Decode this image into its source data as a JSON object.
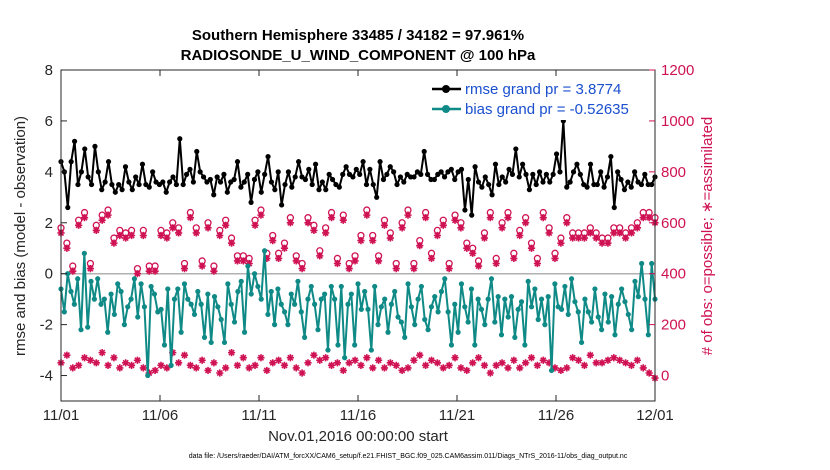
{
  "chart_data": {
    "type": "line",
    "title": "Southern Hemisphere 33485 / 34182 = 97.961%",
    "subtitle": "RADIOSONDE_U_WIND_COMPONENT @ 100 hPa",
    "xlabel": "Nov.01,2016 00:00:00 start",
    "ylabel_left": "rmse and bias (model - observation)",
    "ylabel_right": "# of obs: o=possible; ∗=assimilated",
    "footnote": "data file: /Users/raeder/DAI/ATM_forcXX/CAM6_setup/f.e21.FHIST_BGC.f09_025.CAM6assim.011/Diags_NTrS_2016-11/obs_diag_output.nc",
    "xlim": [
      0,
      30
    ],
    "ylim_left": [
      -5,
      8
    ],
    "ylim_right": [
      -100,
      1200
    ],
    "x_ticks": [
      0,
      5,
      10,
      15,
      20,
      25,
      30
    ],
    "x_tick_labels": [
      "11/01",
      "11/06",
      "11/11",
      "11/16",
      "11/21",
      "11/26",
      "12/01"
    ],
    "y_ticks_left": [
      -4,
      -2,
      0,
      2,
      4,
      6,
      8
    ],
    "y_ticks_right": [
      0,
      200,
      400,
      600,
      800,
      1000,
      1200
    ],
    "zero_line": 0,
    "legend": [
      {
        "label": "rmse grand pr = 3.8774",
        "color": "#000000"
      },
      {
        "label": "bias grand pr = -0.52635",
        "color": "#0f8a86"
      }
    ],
    "colors": {
      "rmse": "#000000",
      "bias": "#0f8a86",
      "obs": "#cf1253",
      "right_axis": "#cf1253",
      "zero_line": "#b0b0b0"
    },
    "series": [
      {
        "name": "rmse",
        "values": [
          4.4,
          4.0,
          2.6,
          4.4,
          5.2,
          3.5,
          4.0,
          4.9,
          3.8,
          3.5,
          5.0,
          4.0,
          3.3,
          3.6,
          4.4,
          3.5,
          3.2,
          3.5,
          3.3,
          4.2,
          3.6,
          3.3,
          3.8,
          3.5,
          4.3,
          3.5,
          3.4,
          4.0,
          3.6,
          3.5,
          3.6,
          3.2,
          3.6,
          3.8,
          3.5,
          5.3,
          3.5,
          3.9,
          4.1,
          3.6,
          4.8,
          4.0,
          3.8,
          3.6,
          3.7,
          3.1,
          3.8,
          3.6,
          3.9,
          3.2,
          3.6,
          3.7,
          4.4,
          3.4,
          3.6,
          3.9,
          2.8,
          3.7,
          4.0,
          3.2,
          3.9,
          4.6,
          3.6,
          3.3,
          4.0,
          2.7,
          3.5,
          4.0,
          3.4,
          3.8,
          4.4,
          3.8,
          3.7,
          4.1,
          3.5,
          4.3,
          3.3,
          3.6,
          3.3,
          3.9,
          3.7,
          3.5,
          3.4,
          3.9,
          4.2,
          3.9,
          3.8,
          4.1,
          3.9,
          4.4,
          3.5,
          4.1,
          3.5,
          3.0,
          4.4,
          3.7,
          3.9,
          4.2,
          4.0,
          3.5,
          3.8,
          3.6,
          3.9,
          3.8,
          3.8,
          4.0,
          3.9,
          4.8,
          3.9,
          3.7,
          3.7,
          3.9,
          4.0,
          3.8,
          4.0,
          4.1,
          3.7,
          4.0,
          4.1,
          2.5,
          3.7,
          2.3,
          4.2,
          3.6,
          3.4,
          3.8,
          3.5,
          3.1,
          4.3,
          3.5,
          3.8,
          3.6,
          4.1,
          3.9,
          4.9,
          3.8,
          4.3,
          3.9,
          3.3,
          3.9,
          3.5,
          4.0,
          3.6,
          3.9,
          3.6,
          3.9,
          4.7,
          4.0,
          6.0,
          3.4,
          3.6,
          4.0,
          4.3,
          3.9,
          3.5,
          3.4,
          4.3,
          3.5,
          3.5,
          4.0,
          3.4,
          3.8,
          4.6,
          2.6,
          4.0,
          3.7,
          3.3,
          3.6,
          3.4,
          4.0,
          3.6,
          3.5,
          3.9,
          3.5,
          3.5,
          3.8
        ]
      },
      {
        "name": "bias",
        "values": [
          -0.6,
          -1.5,
          0.0,
          -0.7,
          -1.2,
          -0.2,
          -2.2,
          0.8,
          -2.1,
          -0.3,
          -1.0,
          -0.2,
          -1.2,
          -1.0,
          -2.3,
          -0.8,
          -1.6,
          -0.4,
          -0.7,
          -2.0,
          -1.3,
          -1.0,
          -0.2,
          -1.7,
          -0.4,
          -1.3,
          -4.0,
          -0.5,
          -0.8,
          -1.5,
          -1.4,
          -2.8,
          -0.6,
          -3.6,
          -1.0,
          -0.6,
          -2.3,
          -0.4,
          -1.0,
          -1.2,
          -1.6,
          -0.7,
          -1.2,
          -2.5,
          -0.8,
          -2.7,
          -0.9,
          -1.3,
          -1.8,
          -2.7,
          -0.4,
          -1.2,
          -1.9,
          -0.7,
          -0.3,
          -2.3,
          0.3,
          -0.8,
          0.0,
          -0.5,
          -1.0,
          0.9,
          -1.6,
          -0.7,
          -2.0,
          -0.6,
          -1.2,
          -1.5,
          -2.0,
          -0.8,
          -1.2,
          -0.3,
          -1.5,
          -2.5,
          -1.0,
          -0.5,
          -1.2,
          -2.2,
          -1.0,
          -0.8,
          -3.0,
          -0.5,
          -1.0,
          -2.8,
          -0.5,
          -3.3,
          -1.2,
          -0.8,
          -2.8,
          -0.4,
          -1.4,
          -0.7,
          -1.4,
          -3.0,
          -0.5,
          -2.0,
          -1.3,
          -1.0,
          -2.3,
          -1.2,
          -0.7,
          -1.7,
          -1.9,
          -2.5,
          -0.4,
          -1.3,
          -2.0,
          -1.0,
          -0.5,
          -1.8,
          -2.2,
          -1.3,
          -0.9,
          -1.5,
          -0.7,
          -0.2,
          -1.5,
          -2.8,
          -1.2,
          -2.3,
          -0.4,
          -1.3,
          -1.9,
          -0.6,
          -2.8,
          -1.0,
          -1.4,
          -2.0,
          -1.0,
          -0.2,
          -1.9,
          -0.9,
          -2.4,
          -1.0,
          -1.7,
          -0.9,
          -2.5,
          -1.4,
          -1.1,
          -2.8,
          -0.3,
          -1.3,
          -0.6,
          -1.8,
          -1.0,
          -2.0,
          -0.9,
          -3.8,
          -0.4,
          -1.3,
          -1.4,
          -0.5,
          -1.6,
          -0.2,
          -1.1,
          -1.5,
          -2.7,
          -1.0,
          -1.5,
          -1.9,
          -0.6,
          -1.7,
          -2.2,
          -0.8,
          -1.9,
          -0.9,
          -2.4,
          -1.2,
          -0.6,
          -1.1,
          -1.6,
          -2.2,
          -0.3,
          -0.9,
          0.4,
          -1.0,
          -2.4,
          0.4,
          -1.0
        ]
      },
      {
        "name": "obs_possible",
        "values": [
          580,
          520,
          430,
          610,
          640,
          440,
          590,
          630,
          650,
          540,
          570,
          560,
          570,
          420,
          570,
          430,
          430,
          570,
          560,
          600,
          580,
          440,
          640,
          580,
          450,
          600,
          430,
          570,
          610,
          540,
          470,
          470,
          460,
          610,
          650,
          480,
          550,
          480,
          520,
          620,
          470,
          440,
          620,
          590,
          490,
          580,
          640,
          460,
          630,
          440,
          470,
          550,
          650,
          550,
          470,
          610,
          560,
          440,
          600,
          650,
          440,
          530,
          640,
          480,
          570,
          610,
          440,
          630,
          600,
          520,
          500,
          450,
          560,
          640,
          460,
          600,
          640,
          480,
          570,
          620,
          520,
          460,
          640,
          580,
          480,
          540,
          620,
          560,
          560,
          560,
          580,
          560,
          540,
          540,
          580,
          580,
          560,
          580,
          600,
          640,
          640,
          620
        ]
      },
      {
        "name": "obs_assimilated",
        "values": [
          560,
          500,
          410,
          590,
          620,
          420,
          570,
          610,
          630,
          520,
          550,
          540,
          550,
          400,
          550,
          410,
          410,
          550,
          540,
          580,
          560,
          420,
          620,
          560,
          430,
          580,
          410,
          550,
          590,
          520,
          450,
          450,
          440,
          590,
          630,
          460,
          530,
          460,
          500,
          600,
          450,
          420,
          600,
          570,
          470,
          560,
          620,
          440,
          610,
          420,
          450,
          530,
          630,
          530,
          450,
          590,
          540,
          420,
          580,
          630,
          420,
          510,
          620,
          460,
          550,
          590,
          420,
          610,
          580,
          500,
          480,
          430,
          540,
          620,
          440,
          580,
          620,
          460,
          550,
          600,
          500,
          440,
          620,
          560,
          460,
          520,
          600,
          540,
          540,
          540,
          560,
          540,
          520,
          520,
          560,
          560,
          540,
          560,
          580,
          620,
          620,
          600
        ]
      },
      {
        "name": "obs_low",
        "values": [
          50,
          80,
          30,
          40,
          70,
          60,
          50,
          90,
          40,
          70,
          30,
          50,
          40,
          60,
          30,
          10,
          20,
          40,
          30,
          90,
          50,
          80,
          40,
          30,
          60,
          20,
          50,
          10,
          30,
          90,
          40,
          70,
          30,
          40,
          70,
          20,
          50,
          60,
          40,
          70,
          30,
          10,
          50,
          80,
          60,
          70,
          40,
          50,
          20,
          50,
          60,
          40,
          70,
          30,
          60,
          30,
          50,
          40,
          20,
          30,
          60,
          80,
          40,
          60,
          50,
          30,
          40,
          70,
          30,
          20,
          50,
          70,
          40,
          10,
          40,
          50,
          30,
          60,
          30,
          50,
          70,
          40,
          60,
          50,
          30,
          20,
          30,
          70,
          60,
          40,
          80,
          50,
          50,
          60,
          70,
          60,
          50,
          40,
          60,
          30,
          10,
          -10
        ]
      }
    ]
  }
}
